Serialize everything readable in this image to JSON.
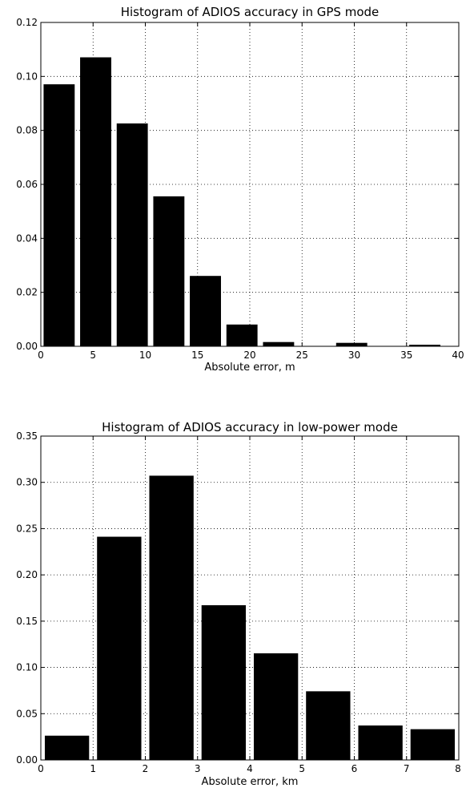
{
  "chart_data": [
    {
      "type": "bar",
      "title": "Histogram of ADIOS accuracy in GPS mode",
      "xlabel": "Absolute error, m",
      "ylabel": "",
      "xlim": [
        0,
        40
      ],
      "ylim": [
        0,
        0.12
      ],
      "grid": true,
      "bin_width": 3.5,
      "bins": [
        {
          "start": 0.0,
          "end": 3.5,
          "value": 0.097
        },
        {
          "start": 3.5,
          "end": 7.0,
          "value": 0.107
        },
        {
          "start": 7.0,
          "end": 10.5,
          "value": 0.0825
        },
        {
          "start": 10.5,
          "end": 14.0,
          "value": 0.0555
        },
        {
          "start": 14.0,
          "end": 17.5,
          "value": 0.026
        },
        {
          "start": 17.5,
          "end": 21.0,
          "value": 0.008
        },
        {
          "start": 21.0,
          "end": 24.5,
          "value": 0.0015
        },
        {
          "start": 24.5,
          "end": 28.0,
          "value": 0.0
        },
        {
          "start": 28.0,
          "end": 31.5,
          "value": 0.0012
        },
        {
          "start": 31.5,
          "end": 35.0,
          "value": 0.0
        },
        {
          "start": 35.0,
          "end": 38.5,
          "value": 0.0005
        },
        {
          "start": 38.5,
          "end": 42.0,
          "value": 0.0
        }
      ],
      "xticks": [
        "0",
        "5",
        "10",
        "15",
        "20",
        "25",
        "30",
        "35",
        "40"
      ],
      "yticks": [
        "0.00",
        "0.02",
        "0.04",
        "0.06",
        "0.08",
        "0.10",
        "0.12"
      ]
    },
    {
      "type": "bar",
      "title": "Histogram of ADIOS accuracy in low-power mode",
      "xlabel": "Absolute error, km",
      "ylabel": "",
      "xlim": [
        0,
        8
      ],
      "ylim": [
        0,
        0.35
      ],
      "grid": true,
      "bin_width": 1.0,
      "bins": [
        {
          "start": 0,
          "end": 1,
          "value": 0.026
        },
        {
          "start": 1,
          "end": 2,
          "value": 0.241
        },
        {
          "start": 2,
          "end": 3,
          "value": 0.307
        },
        {
          "start": 3,
          "end": 4,
          "value": 0.167
        },
        {
          "start": 4,
          "end": 5,
          "value": 0.115
        },
        {
          "start": 5,
          "end": 6,
          "value": 0.074
        },
        {
          "start": 6,
          "end": 7,
          "value": 0.037
        },
        {
          "start": 7,
          "end": 8,
          "value": 0.033
        }
      ],
      "xticks": [
        "0",
        "1",
        "2",
        "3",
        "4",
        "5",
        "6",
        "7",
        "8"
      ],
      "yticks": [
        "0.00",
        "0.05",
        "0.10",
        "0.15",
        "0.20",
        "0.25",
        "0.30",
        "0.35"
      ]
    }
  ]
}
